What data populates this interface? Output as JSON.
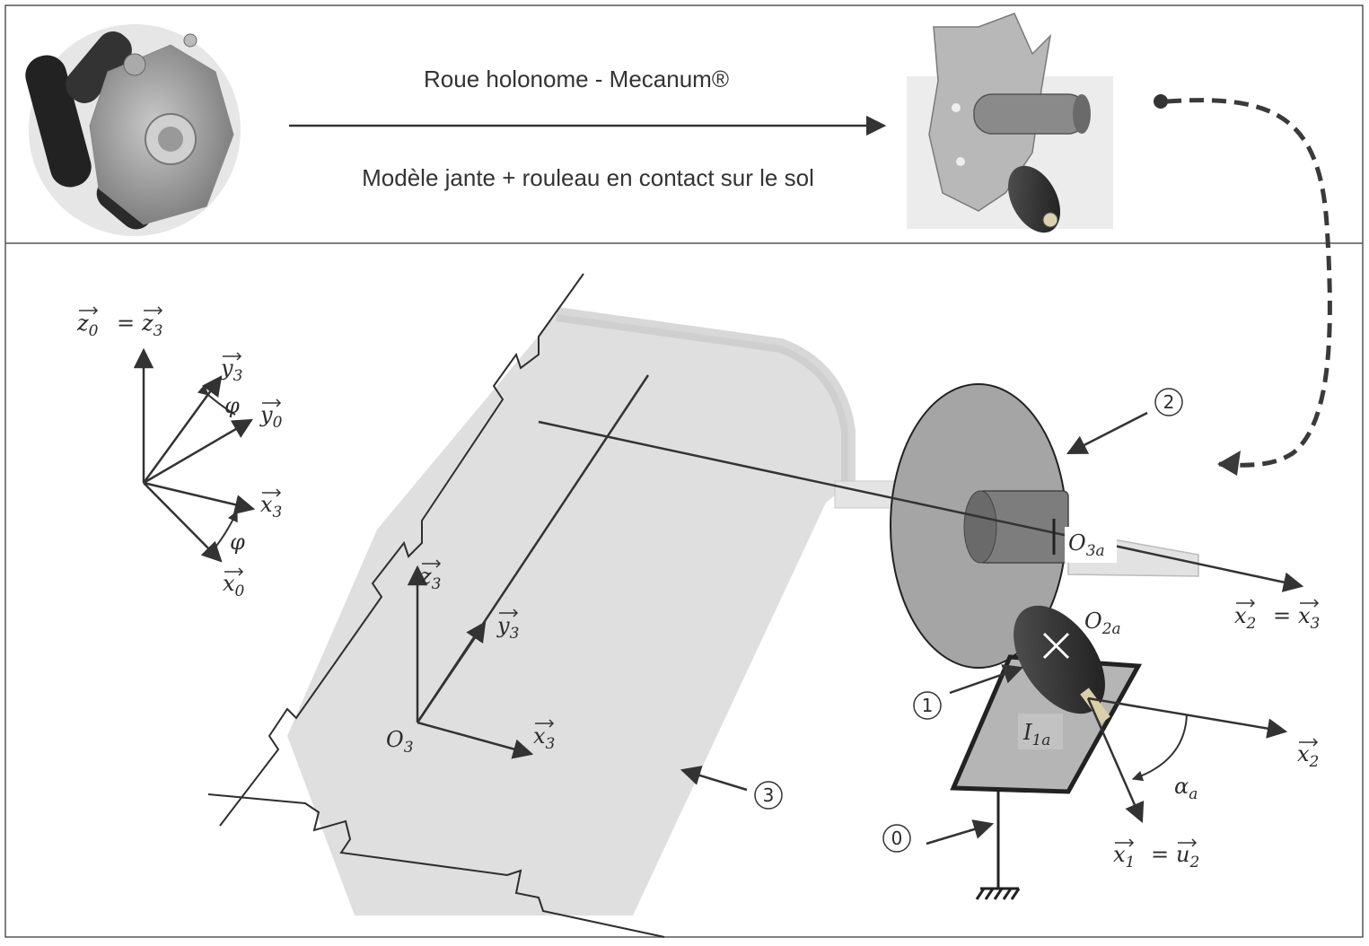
{
  "header": {
    "title": "Roue holonome - Mecanum®",
    "subtitle": "Modèle jante + rouleau en contact sur le sol"
  },
  "labels": {
    "z0": {
      "base": "z",
      "sub": "0"
    },
    "z3_top": {
      "base": "z",
      "sub": "3"
    },
    "y3_top": {
      "base": "y",
      "sub": "3"
    },
    "y0": {
      "base": "y",
      "sub": "0"
    },
    "x3_top": {
      "base": "x",
      "sub": "3"
    },
    "x0": {
      "base": "x",
      "sub": "0"
    },
    "phi": "φ",
    "equals": "=",
    "z3": {
      "base": "z",
      "sub": "3"
    },
    "y3": {
      "base": "y",
      "sub": "3"
    },
    "x3": {
      "base": "x",
      "sub": "3"
    },
    "O3": {
      "base": "O",
      "sub": "3"
    },
    "O3a": {
      "base": "O",
      "sub": "3a"
    },
    "O2a": {
      "base": "O",
      "sub": "2a"
    },
    "I1a": {
      "base": "I",
      "sub": "1a"
    },
    "x2_eq": {
      "base": "x",
      "sub": "2"
    },
    "x3_eq": {
      "base": "x",
      "sub": "3"
    },
    "x2": {
      "base": "x",
      "sub": "2"
    },
    "x1": {
      "base": "x",
      "sub": "1"
    },
    "u2": {
      "base": "u",
      "sub": "2"
    },
    "alpha": {
      "base": "α",
      "sub": "a"
    }
  },
  "parts": {
    "p0": "0",
    "p1": "1",
    "p2": "2",
    "p3": "3"
  },
  "icons": [
    "mecanum-wheel-photo-icon",
    "wheel-rim-roller-photo-icon",
    "ground-symbol-icon"
  ],
  "colors": {
    "line": "#333333",
    "body3": "#dcdcdc",
    "disc": "#a5a5a5",
    "roller": "#2e2e2e",
    "dashed_arrow": "#3a3a3a"
  }
}
